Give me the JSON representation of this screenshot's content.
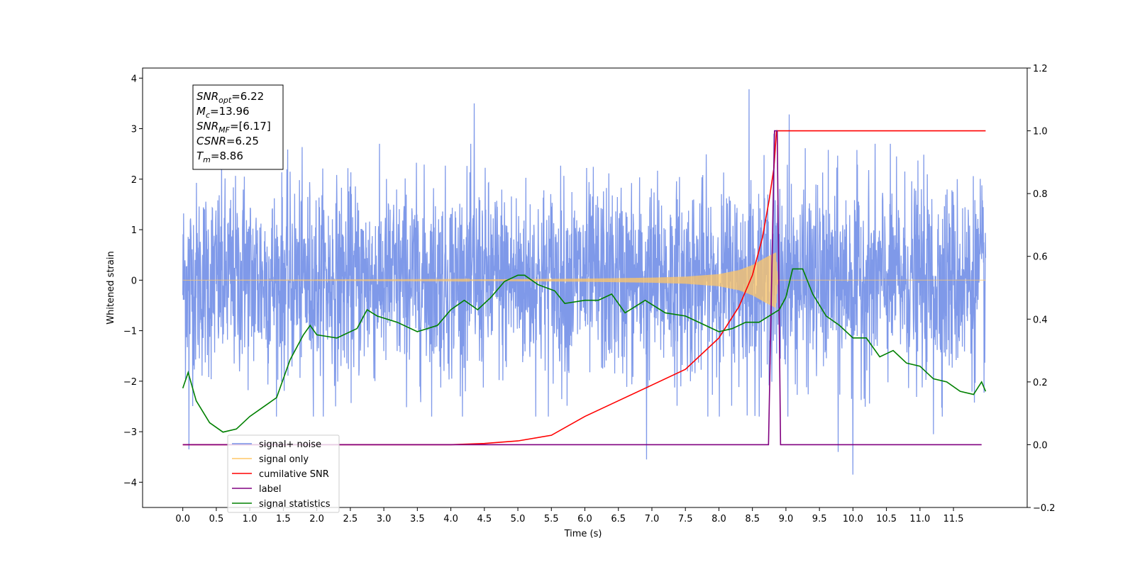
{
  "chart_data": {
    "type": "line",
    "xlabel": "Time (s)",
    "ylabel_left": "Whitened strain",
    "ylabel_right": "",
    "xlim": [
      -0.6,
      12.6
    ],
    "ylim_left": [
      -4.5,
      4.2
    ],
    "ylim_right": [
      -0.2,
      1.2
    ],
    "x_ticks": [
      "0.0",
      "0.5",
      "1.0",
      "1.5",
      "2.0",
      "2.5",
      "3.0",
      "3.5",
      "4.0",
      "4.5",
      "5.0",
      "5.5",
      "6.0",
      "6.5",
      "7.0",
      "7.5",
      "8.0",
      "8.5",
      "9.0",
      "9.5",
      "10.0",
      "10.5",
      "11.0",
      "11.5"
    ],
    "y_ticks_left": [
      "−4",
      "−3",
      "−2",
      "−1",
      "0",
      "1",
      "2",
      "3",
      "4"
    ],
    "y_ticks_right": [
      "−0.2",
      "0.0",
      "0.2",
      "0.4",
      "0.6",
      "0.8",
      "1.0",
      "1.2"
    ],
    "grid": false,
    "legend_position": "lower-left",
    "legend": [
      {
        "label": "signal+ noise",
        "color": "#7894e8"
      },
      {
        "label": "signal only",
        "color": "#ffc766"
      },
      {
        "label": "cumilative SNR",
        "color": "#ff0000"
      },
      {
        "label": "label",
        "color": "#800080"
      },
      {
        "label": "signal statistics",
        "color": "#008000"
      }
    ],
    "annotation": {
      "lines": [
        {
          "base": "SNR",
          "sub": "opt",
          "value": "=6.22"
        },
        {
          "base": "M",
          "sub": "c",
          "value": "=13.96"
        },
        {
          "base": "SNR",
          "sub": "MF",
          "value": "=[6.17]"
        },
        {
          "base": "CSNR",
          "sub": "",
          "value": "=6.25"
        },
        {
          "base": "T",
          "sub": "m",
          "value": "=8.86"
        }
      ]
    },
    "series": [
      {
        "name": "signal+ noise",
        "axis": "left",
        "color": "#7894e8",
        "x_range": [
          0.0,
          11.98
        ],
        "std": 1.0,
        "spikes": [
          [
            0.09,
            -3.35
          ],
          [
            0.92,
            2.05
          ],
          [
            4.35,
            3.5
          ],
          [
            6.92,
            -3.55
          ],
          [
            8.45,
            3.78
          ],
          [
            8.82,
            2.9
          ],
          [
            9.05,
            3.28
          ],
          [
            10.0,
            -3.85
          ],
          [
            9.78,
            -3.4
          ],
          [
            11.2,
            -3.05
          ]
        ]
      },
      {
        "name": "signal only",
        "axis": "left",
        "color": "#ffc766",
        "x_range": [
          0.0,
          11.98
        ],
        "envelope": [
          [
            0.0,
            0.0
          ],
          [
            4.0,
            0.01
          ],
          [
            6.0,
            0.03
          ],
          [
            7.0,
            0.05
          ],
          [
            7.5,
            0.07
          ],
          [
            8.0,
            0.12
          ],
          [
            8.3,
            0.2
          ],
          [
            8.5,
            0.3
          ],
          [
            8.7,
            0.45
          ],
          [
            8.85,
            0.55
          ],
          [
            8.88,
            0.0
          ],
          [
            11.98,
            0.0
          ]
        ]
      },
      {
        "name": "cumilative SNR",
        "axis": "right",
        "color": "#ff0000",
        "points": [
          [
            0.0,
            0.0
          ],
          [
            4.0,
            0.0
          ],
          [
            4.5,
            0.004
          ],
          [
            5.0,
            0.012
          ],
          [
            5.5,
            0.03
          ],
          [
            6.0,
            0.09
          ],
          [
            6.5,
            0.14
          ],
          [
            7.0,
            0.19
          ],
          [
            7.5,
            0.24
          ],
          [
            8.0,
            0.34
          ],
          [
            8.3,
            0.44
          ],
          [
            8.5,
            0.54
          ],
          [
            8.65,
            0.66
          ],
          [
            8.75,
            0.78
          ],
          [
            8.82,
            0.88
          ],
          [
            8.86,
            1.0
          ],
          [
            11.98,
            1.0
          ]
        ]
      },
      {
        "name": "label",
        "axis": "right",
        "color": "#800080",
        "points": [
          [
            0.0,
            0.0
          ],
          [
            8.74,
            0.0
          ],
          [
            8.83,
            1.0
          ],
          [
            8.87,
            1.0
          ],
          [
            8.92,
            0.0
          ],
          [
            11.92,
            0.0
          ]
        ]
      },
      {
        "name": "signal statistics",
        "axis": "right",
        "color": "#008000",
        "points": [
          [
            0.0,
            0.18
          ],
          [
            0.08,
            0.23
          ],
          [
            0.2,
            0.14
          ],
          [
            0.4,
            0.07
          ],
          [
            0.6,
            0.04
          ],
          [
            0.8,
            0.05
          ],
          [
            1.0,
            0.09
          ],
          [
            1.2,
            0.12
          ],
          [
            1.4,
            0.15
          ],
          [
            1.6,
            0.27
          ],
          [
            1.8,
            0.35
          ],
          [
            1.9,
            0.38
          ],
          [
            2.0,
            0.35
          ],
          [
            2.3,
            0.34
          ],
          [
            2.6,
            0.37
          ],
          [
            2.75,
            0.43
          ],
          [
            2.9,
            0.41
          ],
          [
            3.2,
            0.39
          ],
          [
            3.5,
            0.36
          ],
          [
            3.8,
            0.38
          ],
          [
            4.0,
            0.43
          ],
          [
            4.2,
            0.46
          ],
          [
            4.4,
            0.43
          ],
          [
            4.6,
            0.47
          ],
          [
            4.8,
            0.52
          ],
          [
            5.0,
            0.54
          ],
          [
            5.1,
            0.54
          ],
          [
            5.3,
            0.51
          ],
          [
            5.55,
            0.49
          ],
          [
            5.7,
            0.45
          ],
          [
            6.0,
            0.46
          ],
          [
            6.2,
            0.46
          ],
          [
            6.4,
            0.48
          ],
          [
            6.6,
            0.42
          ],
          [
            6.9,
            0.46
          ],
          [
            7.2,
            0.42
          ],
          [
            7.5,
            0.41
          ],
          [
            7.8,
            0.38
          ],
          [
            8.0,
            0.36
          ],
          [
            8.2,
            0.37
          ],
          [
            8.4,
            0.39
          ],
          [
            8.6,
            0.39
          ],
          [
            8.75,
            0.41
          ],
          [
            8.9,
            0.43
          ],
          [
            9.0,
            0.47
          ],
          [
            9.1,
            0.56
          ],
          [
            9.25,
            0.56
          ],
          [
            9.4,
            0.48
          ],
          [
            9.6,
            0.41
          ],
          [
            9.8,
            0.38
          ],
          [
            10.0,
            0.34
          ],
          [
            10.2,
            0.34
          ],
          [
            10.4,
            0.28
          ],
          [
            10.6,
            0.3
          ],
          [
            10.8,
            0.26
          ],
          [
            11.0,
            0.25
          ],
          [
            11.2,
            0.21
          ],
          [
            11.4,
            0.2
          ],
          [
            11.6,
            0.17
          ],
          [
            11.8,
            0.16
          ],
          [
            11.92,
            0.2
          ],
          [
            11.98,
            0.17
          ]
        ]
      }
    ]
  }
}
